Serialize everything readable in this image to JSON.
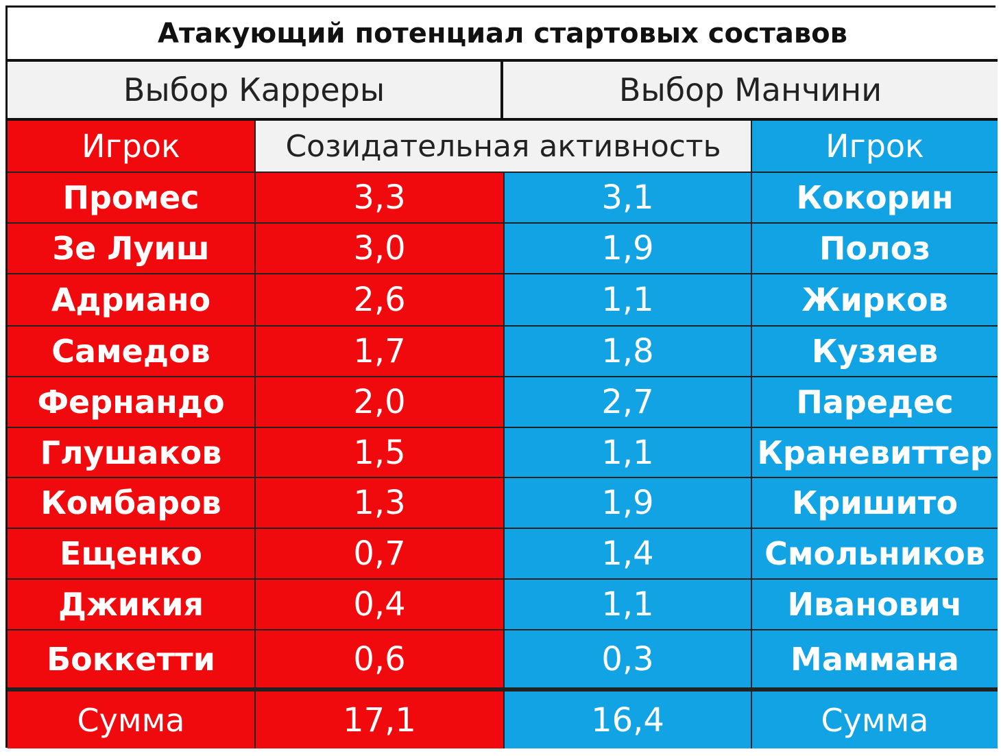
{
  "title": "Атакующий потенциал стартовых составов",
  "choices": {
    "left": "Выбор Карреры",
    "right": "Выбор Манчини"
  },
  "header": {
    "left_player": "Игрок",
    "metric": "Созидательная активность",
    "right_player": "Игрок"
  },
  "rows": [
    {
      "left_player": "Промес",
      "left_value": "3,3",
      "right_value": "3,1",
      "right_player": "Кокорин"
    },
    {
      "left_player": "Зе Луиш",
      "left_value": "3,0",
      "right_value": "1,9",
      "right_player": "Полоз"
    },
    {
      "left_player": "Адриано",
      "left_value": "2,6",
      "right_value": "1,1",
      "right_player": "Жирков"
    },
    {
      "left_player": "Самедов",
      "left_value": "1,7",
      "right_value": "1,8",
      "right_player": "Кузяев"
    },
    {
      "left_player": "Фернандо",
      "left_value": "2,0",
      "right_value": "2,7",
      "right_player": "Паредес"
    },
    {
      "left_player": "Глушаков",
      "left_value": "1,5",
      "right_value": "1,1",
      "right_player": "Краневиттер"
    },
    {
      "left_player": "Комбаров",
      "left_value": "1,3",
      "right_value": "1,9",
      "right_player": "Кришито"
    },
    {
      "left_player": "Ещенко",
      "left_value": "0,7",
      "right_value": "1,4",
      "right_player": "Смольников"
    },
    {
      "left_player": "Джикия",
      "left_value": "0,4",
      "right_value": "1,1",
      "right_player": "Иванович"
    },
    {
      "left_player": "Боккетти",
      "left_value": "0,6",
      "right_value": "0,3",
      "right_player": "Маммана"
    }
  ],
  "total": {
    "left_label": "Сумма",
    "left_value": "17,1",
    "right_value": "16,4",
    "right_label": "Сумма"
  },
  "colors": {
    "left_team": "#f00a0e",
    "right_team": "#12a3e4",
    "header_bg": "#f2f2f2"
  }
}
